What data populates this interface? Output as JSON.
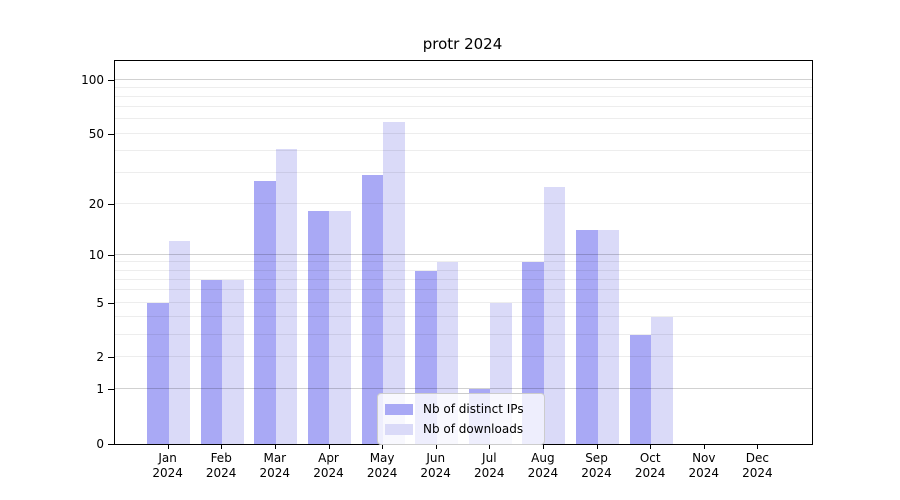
{
  "chart_data": {
    "type": "bar",
    "title": "protr 2024",
    "categories": [
      "Jan",
      "Feb",
      "Mar",
      "Apr",
      "May",
      "Jun",
      "Jul",
      "Aug",
      "Sep",
      "Oct",
      "Nov",
      "Dec"
    ],
    "category_year": "2024",
    "series": [
      {
        "name": "Nb of distinct IPs",
        "color": "#a9a9f5",
        "values": [
          5,
          7,
          27,
          18,
          29,
          8,
          1,
          9,
          14,
          3,
          0,
          0
        ]
      },
      {
        "name": "Nb of downloads",
        "color": "#dadaf8",
        "values": [
          12,
          7,
          41,
          18,
          58,
          9,
          5,
          25,
          14,
          4,
          0,
          0
        ]
      }
    ],
    "yticks": [
      0,
      1,
      2,
      5,
      10,
      20,
      50,
      100
    ],
    "scale": "log1p",
    "ylim": [
      0,
      127
    ],
    "grid": "on",
    "legend_position": "bottom-center"
  },
  "colors": {
    "distinct_ips": "#a9a9f5",
    "downloads": "#dadaf8",
    "axis": "#000000",
    "grid_major": "#d1d1d1",
    "grid_minor": "#ededed",
    "background": "#ffffff"
  }
}
